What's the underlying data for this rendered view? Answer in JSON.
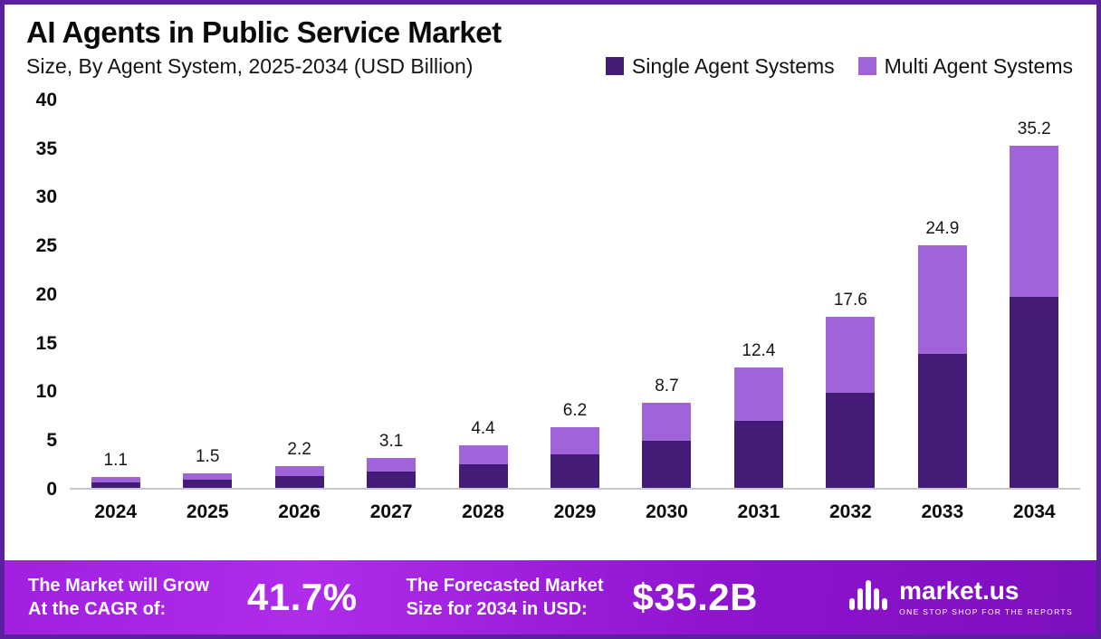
{
  "header": {
    "title": "AI Agents in Public Service Market",
    "subtitle": "Size, By Agent System, 2025-2034 (USD Billion)"
  },
  "chart_data": {
    "type": "bar",
    "stacked": true,
    "title": "AI Agents in Public Service Market Size, By Agent System, 2025-2034 (USD Billion)",
    "categories": [
      "2024",
      "2025",
      "2026",
      "2027",
      "2028",
      "2029",
      "2030",
      "2031",
      "2032",
      "2033",
      "2034"
    ],
    "series": [
      {
        "name": "Single Agent Systems",
        "color": "#431c78",
        "values": [
          0.6,
          0.8,
          1.2,
          1.7,
          2.4,
          3.4,
          4.8,
          6.9,
          9.8,
          13.8,
          19.6
        ]
      },
      {
        "name": "Multi Agent Systems",
        "color": "#a164d8",
        "values": [
          0.5,
          0.7,
          1.0,
          1.4,
          2.0,
          2.8,
          3.9,
          5.5,
          7.8,
          11.1,
          15.6
        ]
      }
    ],
    "totals": [
      1.1,
      1.5,
      2.2,
      3.1,
      4.4,
      6.2,
      8.7,
      12.4,
      17.6,
      24.9,
      35.2
    ],
    "xlabel": "",
    "ylabel": "",
    "ylim": [
      0,
      40
    ],
    "yticks": [
      0,
      5,
      10,
      15,
      20,
      25,
      30,
      35,
      40
    ],
    "grid": false,
    "legend_position": "top-right"
  },
  "footer": {
    "cagr_label_line1": "The Market will Grow",
    "cagr_label_line2": "At the CAGR of:",
    "cagr_value": "41.7%",
    "forecast_label_line1": "The Forecasted Market",
    "forecast_label_line2": "Size for 2034 in USD:",
    "forecast_value": "$35.2B",
    "brand_name": "market.us",
    "brand_tagline": "ONE STOP SHOP FOR THE REPORTS"
  },
  "colors": {
    "border": "#5a209d",
    "footer_gradient_start": "#a11fe0",
    "footer_gradient_end": "#7d0fbd",
    "baseline": "#c9c9c9"
  }
}
